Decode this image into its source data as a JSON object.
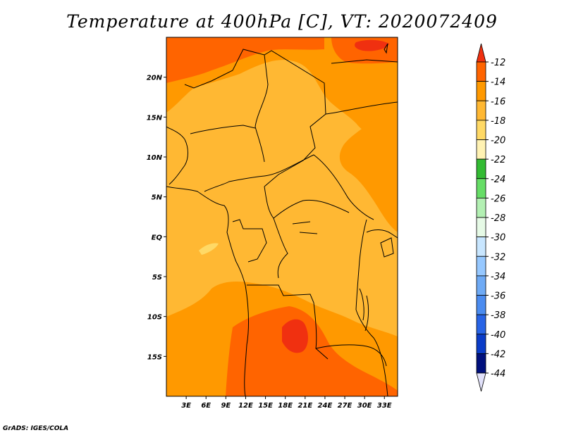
{
  "title": "Temperature at 400hPa [C], VT: 2020072409",
  "credit": "GrADS: IGES/COLA",
  "map": {
    "lon_range": [
      0,
      35
    ],
    "lat_range": [
      -20,
      25
    ],
    "lon_ticks": [
      {
        "v": 3,
        "t": "3E"
      },
      {
        "v": 6,
        "t": "6E"
      },
      {
        "v": 9,
        "t": "9E"
      },
      {
        "v": 12,
        "t": "12E"
      },
      {
        "v": 15,
        "t": "15E"
      },
      {
        "v": 18,
        "t": "18E"
      },
      {
        "v": 21,
        "t": "21E"
      },
      {
        "v": 24,
        "t": "24E"
      },
      {
        "v": 27,
        "t": "27E"
      },
      {
        "v": 30,
        "t": "30E"
      },
      {
        "v": 33,
        "t": "33E"
      }
    ],
    "lat_ticks": [
      {
        "v": 20,
        "t": "20N"
      },
      {
        "v": 15,
        "t": "15N"
      },
      {
        "v": 10,
        "t": "10N"
      },
      {
        "v": 5,
        "t": "5N"
      },
      {
        "v": 0,
        "t": "EQ"
      },
      {
        "v": -5,
        "t": "5S"
      },
      {
        "v": -10,
        "t": "10S"
      },
      {
        "v": -15,
        "t": "15S"
      }
    ]
  },
  "colorbar": {
    "labels": [
      "-12",
      "-14",
      "-16",
      "-18",
      "-20",
      "-22",
      "-24",
      "-26",
      "-28",
      "-30",
      "-32",
      "-34",
      "-36",
      "-38",
      "-40",
      "-42",
      "-44"
    ],
    "colors": [
      "#f03010",
      "#ff6400",
      "#ff9900",
      "#ffb833",
      "#ffd966",
      "#fff2b3",
      "#33bb33",
      "#66dd66",
      "#b3f0b3",
      "#e6fae6",
      "#c8e6ff",
      "#96c8ff",
      "#6eaaf5",
      "#4b8cf0",
      "#2864e6",
      "#0a3cc8",
      "#00107d",
      "#e1e1fa"
    ]
  }
}
